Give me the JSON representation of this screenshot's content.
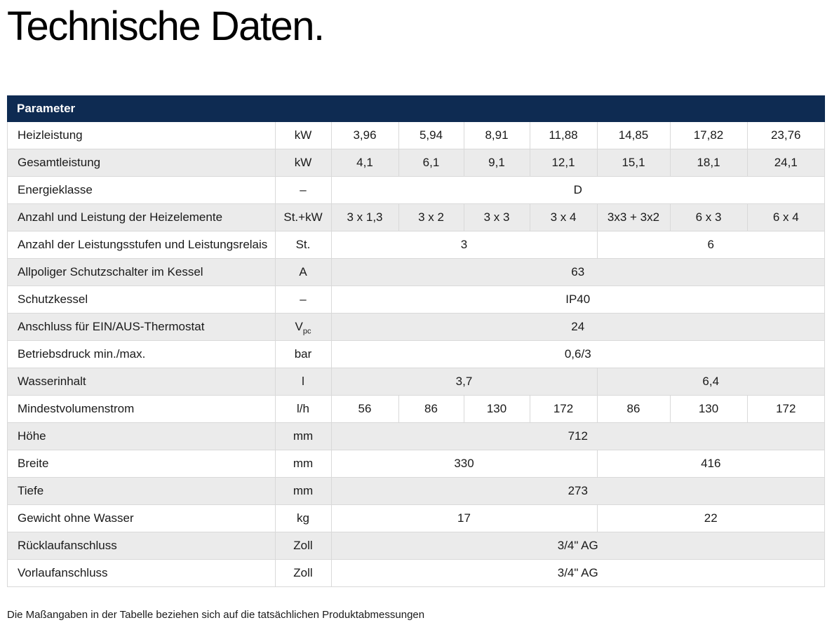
{
  "page": {
    "title": "Technische Daten.",
    "footnote": "Die Maßangaben in der Tabelle beziehen sich auf die tatsächlichen Produktabmessungen"
  },
  "colors": {
    "header_bg": "#0e2b52",
    "header_text": "#ffffff",
    "row_alt_bg": "#ebebeb",
    "border": "#d9d9d9"
  },
  "table": {
    "header": "Parameter",
    "value_columns": 7,
    "rows": [
      {
        "label": "Heizleistung",
        "unit": "kW",
        "cells": [
          {
            "text": "3,96",
            "span": 1
          },
          {
            "text": "5,94",
            "span": 1
          },
          {
            "text": "8,91",
            "span": 1
          },
          {
            "text": "11,88",
            "span": 1
          },
          {
            "text": "14,85",
            "span": 1
          },
          {
            "text": "17,82",
            "span": 1
          },
          {
            "text": "23,76",
            "span": 1
          }
        ]
      },
      {
        "label": "Gesamtleistung",
        "unit": "kW",
        "cells": [
          {
            "text": "4,1",
            "span": 1
          },
          {
            "text": "6,1",
            "span": 1
          },
          {
            "text": "9,1",
            "span": 1
          },
          {
            "text": "12,1",
            "span": 1
          },
          {
            "text": "15,1",
            "span": 1
          },
          {
            "text": "18,1",
            "span": 1
          },
          {
            "text": "24,1",
            "span": 1
          }
        ]
      },
      {
        "label": "Energieklasse",
        "unit": "–",
        "cells": [
          {
            "text": "D",
            "span": 7
          }
        ]
      },
      {
        "label": "Anzahl und Leistung der Heizelemente",
        "unit": "St.+kW",
        "cells": [
          {
            "text": "3 x 1,3",
            "span": 1
          },
          {
            "text": "3 x 2",
            "span": 1
          },
          {
            "text": "3 x 3",
            "span": 1
          },
          {
            "text": "3 x 4",
            "span": 1
          },
          {
            "text": "3x3 + 3x2",
            "span": 1
          },
          {
            "text": "6 x 3",
            "span": 1
          },
          {
            "text": "6 x 4",
            "span": 1
          }
        ]
      },
      {
        "label": "Anzahl der Leistungsstufen und Leistungsrelais",
        "unit": "St.",
        "cells": [
          {
            "text": "3",
            "span": 4
          },
          {
            "text": "6",
            "span": 3
          }
        ]
      },
      {
        "label": "Allpoliger Schutzschalter im Kessel",
        "unit": "A",
        "cells": [
          {
            "text": "63",
            "span": 7
          }
        ]
      },
      {
        "label": "Schutzkessel",
        "unit": "–",
        "cells": [
          {
            "text": "IP40",
            "span": 7
          }
        ]
      },
      {
        "label": "Anschluss für EIN/AUS-Thermostat",
        "unit": "V",
        "unit_sub": "pc",
        "cells": [
          {
            "text": "24",
            "span": 7
          }
        ]
      },
      {
        "label": "Betriebsdruck min./max.",
        "unit": "bar",
        "cells": [
          {
            "text": "0,6/3",
            "span": 7
          }
        ]
      },
      {
        "label": "Wasserinhalt",
        "unit": "l",
        "cells": [
          {
            "text": "3,7",
            "span": 4
          },
          {
            "text": "6,4",
            "span": 3
          }
        ]
      },
      {
        "label": "Mindestvolumenstrom",
        "unit": "l/h",
        "cells": [
          {
            "text": "56",
            "span": 1
          },
          {
            "text": "86",
            "span": 1
          },
          {
            "text": "130",
            "span": 1
          },
          {
            "text": "172",
            "span": 1
          },
          {
            "text": "86",
            "span": 1
          },
          {
            "text": "130",
            "span": 1
          },
          {
            "text": "172",
            "span": 1
          }
        ]
      },
      {
        "label": "Höhe",
        "unit": "mm",
        "cells": [
          {
            "text": "712",
            "span": 7
          }
        ]
      },
      {
        "label": "Breite",
        "unit": "mm",
        "cells": [
          {
            "text": "330",
            "span": 4
          },
          {
            "text": "416",
            "span": 3
          }
        ]
      },
      {
        "label": "Tiefe",
        "unit": "mm",
        "cells": [
          {
            "text": "273",
            "span": 7
          }
        ]
      },
      {
        "label": "Gewicht ohne Wasser",
        "unit": "kg",
        "cells": [
          {
            "text": "17",
            "span": 4
          },
          {
            "text": "22",
            "span": 3
          }
        ]
      },
      {
        "label": "Rücklaufanschluss",
        "unit": "Zoll",
        "cells": [
          {
            "text": "3/4\" AG",
            "span": 7
          }
        ]
      },
      {
        "label": "Vorlaufanschluss",
        "unit": "Zoll",
        "cells": [
          {
            "text": "3/4\" AG",
            "span": 7
          }
        ]
      }
    ]
  }
}
